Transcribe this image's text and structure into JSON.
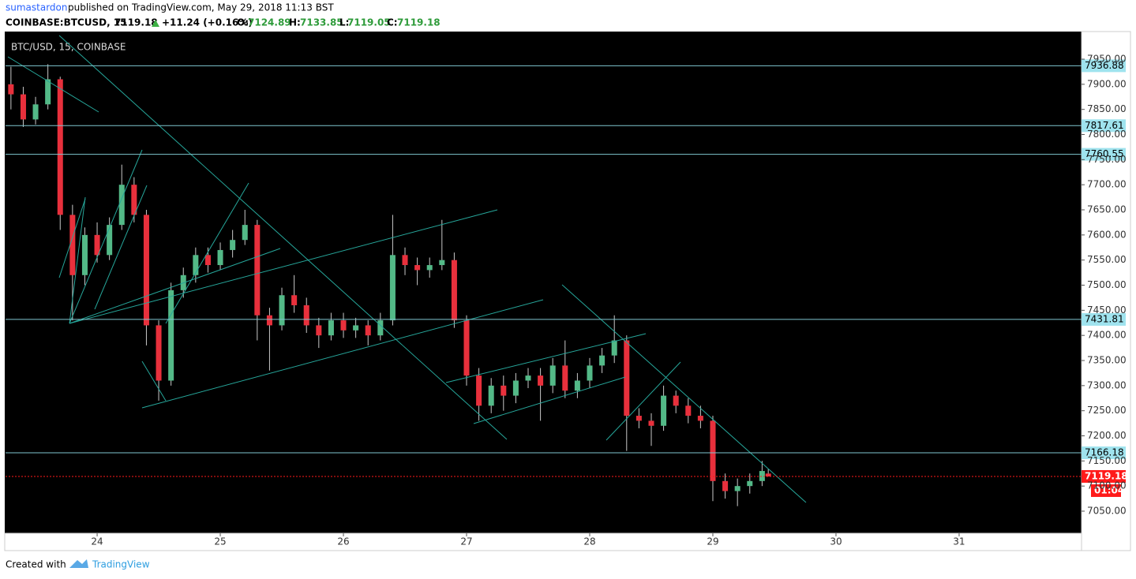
{
  "header": {
    "author": "sumastardon",
    "published": "published on TradingView.com, May 29, 2018 11:13 BST",
    "symbol": "COINBASE:BTCUSD, 15",
    "last": 7119.18,
    "change": "+11.24 (+0.16%)",
    "o_label": "O:",
    "o": 7124.89,
    "h_label": "H:",
    "h": 7133.85,
    "l_label": "L:",
    "l": 7119.05,
    "c_label": "C:",
    "c": 7119.18
  },
  "footer": {
    "created": "Created with",
    "brand": "TradingView"
  },
  "chart_data": {
    "type": "candlestick",
    "legend": "BTC/USD, 15, COINBASE",
    "up_color": "#53b987",
    "down_color": "#e8303c",
    "wick_color": "#c8c8c8",
    "level_color": "#7fc6cf",
    "last_color": "#ff1a1a",
    "x": [
      23.3,
      23.4,
      23.5,
      23.6,
      23.7,
      23.8,
      23.9,
      24.0,
      24.1,
      24.2,
      24.3,
      24.4,
      24.5,
      24.6,
      24.7,
      24.8,
      24.9,
      25.0,
      25.1,
      25.2,
      25.3,
      25.4,
      25.5,
      25.6,
      25.7,
      25.8,
      25.9,
      26.0,
      26.1,
      26.2,
      26.3,
      26.4,
      26.5,
      26.6,
      26.7,
      26.8,
      26.9,
      27.0,
      27.1,
      27.2,
      27.3,
      27.4,
      27.5,
      27.6,
      27.7,
      27.8,
      27.9,
      28.0,
      28.1,
      28.2,
      28.3,
      28.4,
      28.5,
      28.6,
      28.7,
      28.8,
      28.9,
      29.0,
      29.1,
      29.2,
      29.3,
      29.4,
      29.45
    ],
    "open": [
      7900,
      7880,
      7830,
      7860,
      7910,
      7640,
      7520,
      7600,
      7560,
      7620,
      7700,
      7640,
      7420,
      7310,
      7490,
      7520,
      7560,
      7540,
      7570,
      7590,
      7620,
      7440,
      7420,
      7480,
      7460,
      7420,
      7400,
      7430,
      7410,
      7420,
      7400,
      7430,
      7560,
      7540,
      7530,
      7540,
      7550,
      7430,
      7320,
      7260,
      7300,
      7280,
      7310,
      7320,
      7300,
      7340,
      7290,
      7310,
      7340,
      7360,
      7390,
      7240,
      7230,
      7220,
      7280,
      7260,
      7240,
      7230,
      7110,
      7090,
      7100,
      7110,
      7124.89
    ],
    "high": [
      7935,
      7895,
      7875,
      7940,
      7915,
      7660,
      7615,
      7625,
      7635,
      7740,
      7715,
      7650,
      7430,
      7505,
      7535,
      7575,
      7575,
      7585,
      7610,
      7650,
      7630,
      7455,
      7495,
      7520,
      7475,
      7435,
      7445,
      7445,
      7435,
      7430,
      7445,
      7640,
      7575,
      7555,
      7555,
      7630,
      7565,
      7440,
      7335,
      7315,
      7320,
      7325,
      7335,
      7335,
      7355,
      7390,
      7325,
      7355,
      7375,
      7440,
      7400,
      7255,
      7245,
      7300,
      7290,
      7275,
      7260,
      7240,
      7125,
      7115,
      7125,
      7150,
      7133.85
    ],
    "low": [
      7850,
      7815,
      7820,
      7850,
      7610,
      7430,
      7500,
      7545,
      7550,
      7610,
      7625,
      7380,
      7270,
      7300,
      7475,
      7505,
      7525,
      7530,
      7555,
      7580,
      7390,
      7330,
      7410,
      7445,
      7405,
      7375,
      7390,
      7395,
      7395,
      7380,
      7390,
      7420,
      7520,
      7500,
      7515,
      7530,
      7415,
      7300,
      7230,
      7245,
      7250,
      7265,
      7295,
      7230,
      7285,
      7275,
      7275,
      7295,
      7325,
      7345,
      7170,
      7215,
      7180,
      7210,
      7245,
      7225,
      7215,
      7070,
      7075,
      7060,
      7085,
      7100,
      7119.05
    ],
    "close": [
      7880,
      7830,
      7860,
      7910,
      7640,
      7520,
      7600,
      7560,
      7620,
      7700,
      7640,
      7420,
      7310,
      7490,
      7520,
      7560,
      7540,
      7570,
      7590,
      7620,
      7440,
      7420,
      7480,
      7460,
      7420,
      7400,
      7430,
      7410,
      7420,
      7400,
      7430,
      7560,
      7540,
      7530,
      7540,
      7550,
      7430,
      7320,
      7260,
      7300,
      7280,
      7310,
      7320,
      7300,
      7340,
      7290,
      7310,
      7340,
      7360,
      7390,
      7240,
      7230,
      7220,
      7280,
      7260,
      7240,
      7230,
      7110,
      7090,
      7100,
      7110,
      7130,
      7119.18
    ],
    "levels": [
      7936.88,
      7817.61,
      7760.55,
      7431.81,
      7166.18
    ],
    "last_price": 7119.18,
    "countdown": "01:04",
    "xlim": [
      23.256,
      31.994
    ],
    "xticks": [
      24,
      25,
      26,
      27,
      28,
      29,
      30,
      31
    ],
    "ylim": [
      7007.6,
      8005
    ],
    "yticks": [
      {
        "value": 7050,
        "label": "7050.00"
      },
      {
        "value": 7100,
        "label": "7100.00"
      },
      {
        "value": 7150,
        "label": "7150.00"
      },
      {
        "value": 7200,
        "label": "7200.00"
      },
      {
        "value": 7250,
        "label": "7250.00"
      },
      {
        "value": 7300,
        "label": "7300.00"
      },
      {
        "value": 7350,
        "label": "7350.00"
      },
      {
        "value": 7400,
        "label": "7400.00"
      },
      {
        "value": 7450,
        "label": "7450.00"
      },
      {
        "value": 7500,
        "label": "7500.00"
      },
      {
        "value": 7550,
        "label": "7550.00"
      },
      {
        "value": 7600,
        "label": "7600.00"
      },
      {
        "value": 7650,
        "label": "7650.00"
      },
      {
        "value": 7700,
        "label": "7700.00"
      },
      {
        "value": 7750,
        "label": "7750.00"
      },
      {
        "value": 7800,
        "label": "7800.00"
      },
      {
        "value": 7850,
        "label": "7850.00"
      },
      {
        "value": 7900,
        "label": "7900.00"
      },
      {
        "value": 7950,
        "label": "7950.00"
      }
    ]
  }
}
